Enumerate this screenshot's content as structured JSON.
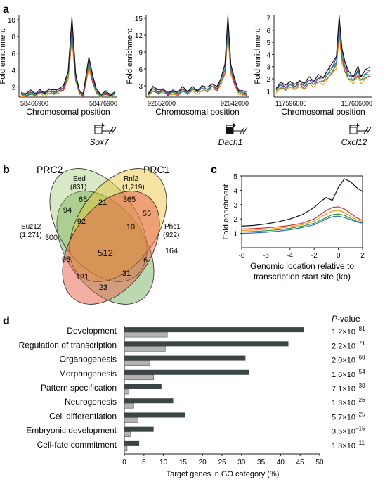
{
  "panel_labels": {
    "a": "a",
    "b": "b",
    "c": "c",
    "d": "d"
  },
  "panel_a": {
    "ylabel": "Fold enrichment",
    "xlabel": "Chromosomal position",
    "series_colors": [
      "#e8a01e",
      "#d6332e",
      "#2a9e44",
      "#2f6fb8",
      "#6e3a8c",
      "#111111"
    ],
    "charts": [
      {
        "gene": "Sox7",
        "x_start": "58466900",
        "x_end": "58476900",
        "yticks": [
          "2",
          "4",
          "6",
          "8",
          "10"
        ],
        "ymax": 10.5,
        "ymin": 0.8,
        "promoter_filled": false,
        "promoter_side": "right"
      },
      {
        "gene": "Dach1",
        "x_start": "92652000",
        "x_end": "92642000",
        "yticks": [
          "3",
          "6",
          "9",
          "12",
          "15"
        ],
        "ymax": 15.5,
        "ymin": 1,
        "promoter_filled": true,
        "promoter_side": "right"
      },
      {
        "gene": "Cxcl12",
        "x_start": "117596000",
        "x_end": "117606000",
        "yticks": [
          "1",
          "2",
          "3",
          "4",
          "5",
          "6",
          "7"
        ],
        "ymax": 7.2,
        "ymin": 0.5,
        "promoter_filled": false,
        "promoter_side": "right"
      }
    ]
  },
  "panel_b": {
    "group_left": "PRC2",
    "group_right": "PRC1",
    "sets": [
      {
        "name": "Suz12",
        "count": "(1,271)",
        "color": "#6aa84f"
      },
      {
        "name": "Eed",
        "count": "(831)",
        "color": "#8fbf5a"
      },
      {
        "name": "Rnf2",
        "count": "(1,219)",
        "color": "#e6c230"
      },
      {
        "name": "Phc1",
        "count": "(922)",
        "color": "#e8604a"
      }
    ],
    "region_values": [
      "300",
      "94",
      "65",
      "21",
      "365",
      "55",
      "164",
      "92",
      "10",
      "512",
      "98",
      "6",
      "121",
      "31",
      "23"
    ]
  },
  "panel_c": {
    "ylabel": "Fold enrichment",
    "xlabel_line1": "Genomic location relative to",
    "xlabel_line2": "transcription start site (kb)",
    "xticks": [
      "-8",
      "-6",
      "-4",
      "-2",
      "0",
      "2"
    ],
    "yticks": [
      "1",
      "2",
      "3",
      "4",
      "5"
    ],
    "chart_data": {
      "type": "line",
      "x": [
        -8,
        -7,
        -6,
        -5,
        -4,
        -3,
        -2,
        -1.5,
        -1,
        -0.5,
        0,
        0.5,
        1,
        1.5,
        2
      ],
      "series": [
        {
          "color": "#111111",
          "values": [
            1.5,
            1.55,
            1.65,
            1.8,
            2.0,
            2.3,
            2.8,
            3.2,
            3.5,
            3.3,
            4.2,
            4.8,
            4.6,
            4.2,
            3.9
          ]
        },
        {
          "color": "#d6332e",
          "values": [
            1.3,
            1.33,
            1.38,
            1.45,
            1.55,
            1.7,
            2.0,
            2.3,
            2.6,
            2.8,
            2.85,
            2.7,
            2.4,
            2.1,
            1.9
          ]
        },
        {
          "color": "#e8a01e",
          "values": [
            1.2,
            1.23,
            1.28,
            1.35,
            1.45,
            1.6,
            1.85,
            2.1,
            2.35,
            2.55,
            2.6,
            2.45,
            2.2,
            1.95,
            1.8
          ]
        },
        {
          "color": "#2a9e44",
          "values": [
            1.1,
            1.13,
            1.18,
            1.25,
            1.35,
            1.5,
            1.7,
            1.9,
            2.1,
            2.3,
            2.35,
            2.25,
            2.05,
            1.85,
            1.75
          ]
        },
        {
          "color": "#2f6fb8",
          "values": [
            1.0,
            1.03,
            1.08,
            1.15,
            1.25,
            1.4,
            1.6,
            1.8,
            2.0,
            2.15,
            2.2,
            2.1,
            1.95,
            1.8,
            1.7
          ]
        }
      ],
      "xlim": [
        -8,
        2
      ],
      "ylim": [
        0,
        5
      ]
    }
  },
  "panel_d": {
    "pvalue_header": "P-value",
    "xlabel": "Target genes in GO category (%)",
    "xticks": [
      "0",
      "5",
      "10",
      "15",
      "20",
      "25",
      "30",
      "35",
      "40",
      "45",
      "50"
    ],
    "chart_data": {
      "type": "bar",
      "orientation": "horizontal",
      "categories": [
        "Development",
        "Regulation of transcription",
        "Organogenesis",
        "Morphogenesis",
        "Pattern specification",
        "Neurogenesis",
        "Cell differentiation",
        "Embryonic development",
        "Cell-fate commitment"
      ],
      "series": [
        {
          "color": "#3c4545",
          "values": [
            46,
            42,
            31,
            32,
            9.5,
            12.5,
            15.5,
            7.5,
            3.8
          ]
        },
        {
          "color": "#b3b3b3",
          "values": [
            11,
            10.5,
            6.5,
            7.5,
            1.2,
            2.4,
            3.5,
            1.5,
            0.7
          ]
        }
      ],
      "pvalues": [
        {
          "mantissa": "1.2",
          "exponent": "−81"
        },
        {
          "mantissa": "2.2",
          "exponent": "−71"
        },
        {
          "mantissa": "2.0",
          "exponent": "−60"
        },
        {
          "mantissa": "1.6",
          "exponent": "−54"
        },
        {
          "mantissa": "7.1",
          "exponent": "−30"
        },
        {
          "mantissa": "1.3",
          "exponent": "−26"
        },
        {
          "mantissa": "5.7",
          "exponent": "−25"
        },
        {
          "mantissa": "3.5",
          "exponent": "−15"
        },
        {
          "mantissa": "1.3",
          "exponent": "−11"
        }
      ],
      "xlim": [
        0,
        50
      ]
    }
  }
}
